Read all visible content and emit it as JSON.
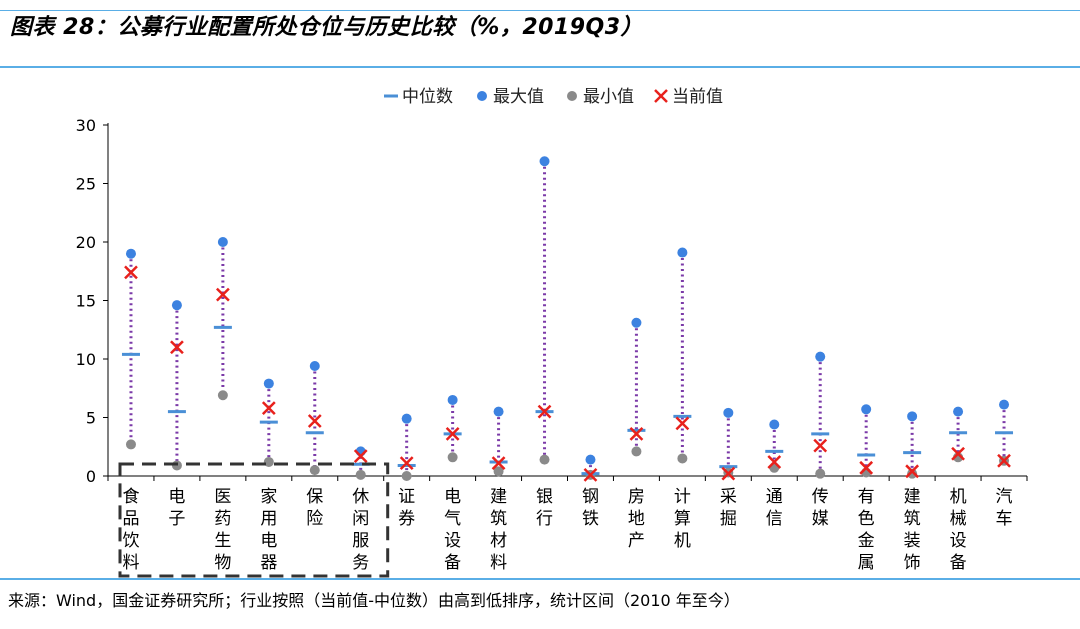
{
  "figure": {
    "title": "图表 28：公募行业配置所处仓位与历史比较（%，2019Q3）",
    "source": "来源：Wind，国金证券研究所；行业按照（当前值-中位数）由高到低排序，统计区间（2010 年至今）"
  },
  "colors": {
    "median": "#4a8fd6",
    "max": "#3c82e0",
    "min": "#8a8a8a",
    "current": "#e8211c",
    "range_line": "#7b3aa8",
    "rule": "#5aaee6"
  },
  "chart_data": {
    "type": "scatter",
    "categories": [
      "食品饮料",
      "电子",
      "医药生物",
      "家用电器",
      "保险",
      "休闲服务",
      "证券",
      "电气设备",
      "建筑材料",
      "银行",
      "钢铁",
      "房地产",
      "计算机",
      "采掘",
      "通信",
      "传媒",
      "有色金属",
      "建筑装饰",
      "机械设备",
      "汽车"
    ],
    "series": [
      {
        "name": "中位数",
        "marker": "dash",
        "values": [
          10.4,
          5.5,
          12.7,
          4.6,
          3.7,
          1.0,
          0.9,
          3.6,
          1.2,
          5.5,
          0.2,
          3.9,
          5.1,
          0.8,
          2.1,
          3.6,
          1.8,
          2.0,
          3.7,
          3.7
        ]
      },
      {
        "name": "最大值",
        "marker": "circle",
        "values": [
          19.0,
          14.6,
          20.0,
          7.9,
          9.4,
          2.1,
          4.9,
          6.5,
          5.5,
          26.9,
          1.4,
          13.1,
          19.1,
          5.4,
          4.4,
          10.2,
          5.7,
          5.1,
          5.5,
          6.1
        ]
      },
      {
        "name": "最小值",
        "marker": "circle",
        "values": [
          2.7,
          0.9,
          6.9,
          1.2,
          0.5,
          0.1,
          0.0,
          1.6,
          0.4,
          1.4,
          0.1,
          2.1,
          1.5,
          0.3,
          0.7,
          0.2,
          0.3,
          0.2,
          1.6,
          1.3
        ]
      },
      {
        "name": "当前值",
        "marker": "x",
        "values": [
          17.4,
          11.0,
          15.5,
          5.8,
          4.7,
          1.7,
          1.1,
          3.6,
          1.1,
          5.5,
          0.1,
          3.6,
          4.5,
          0.2,
          1.2,
          2.6,
          0.7,
          0.4,
          1.9,
          1.3
        ]
      }
    ],
    "ylim": [
      0,
      30
    ],
    "yticks": [
      0,
      5,
      10,
      15,
      20,
      25,
      30
    ],
    "grid": false,
    "legend_position": "top-center",
    "highlight_box": {
      "categories": [
        "食品饮料",
        "电子",
        "医药生物",
        "家用电器",
        "保险",
        "休闲服务"
      ],
      "style": "dashed"
    }
  }
}
